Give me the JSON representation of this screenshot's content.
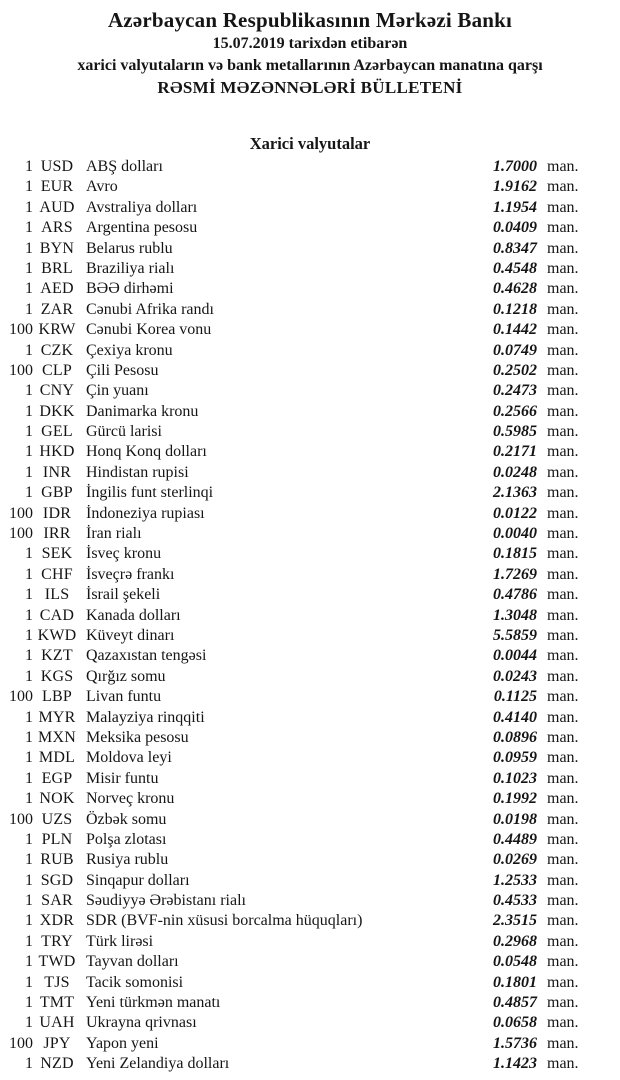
{
  "header": {
    "title": "Azərbaycan Respublikasının Mərkəzi Bankı",
    "date_line": "15.07.2019 tarixdən etibarən",
    "subtitle": "xarici valyutaların və bank metallarının Azərbaycan manatına qarşı",
    "bulletin_title": "RƏSMİ MƏZƏNNƏLƏRİ BÜLLETENİ"
  },
  "section": {
    "title": "Xarici valyutalar"
  },
  "table": {
    "unit_label": "man.",
    "rows": [
      {
        "qty": "1",
        "code": "USD",
        "name": "ABŞ dolları",
        "rate": "1.7000"
      },
      {
        "qty": "1",
        "code": "EUR",
        "name": "Avro",
        "rate": "1.9162"
      },
      {
        "qty": "1",
        "code": "AUD",
        "name": "Avstraliya dolları",
        "rate": "1.1954"
      },
      {
        "qty": "1",
        "code": "ARS",
        "name": "Argentina pesosu",
        "rate": "0.0409"
      },
      {
        "qty": "1",
        "code": "BYN",
        "name": "Belarus rublu",
        "rate": "0.8347"
      },
      {
        "qty": "1",
        "code": "BRL",
        "name": "Braziliya rialı",
        "rate": "0.4548"
      },
      {
        "qty": "1",
        "code": "AED",
        "name": "BƏƏ dirhəmi",
        "rate": "0.4628"
      },
      {
        "qty": "1",
        "code": "ZAR",
        "name": "Cənubi Afrika randı",
        "rate": "0.1218"
      },
      {
        "qty": "100",
        "code": "KRW",
        "name": "Cənubi Korea vonu",
        "rate": "0.1442"
      },
      {
        "qty": "1",
        "code": "CZK",
        "name": "Çexiya kronu",
        "rate": "0.0749"
      },
      {
        "qty": "100",
        "code": "CLP",
        "name": "Çili Pesosu",
        "rate": "0.2502"
      },
      {
        "qty": "1",
        "code": "CNY",
        "name": "Çin yuanı",
        "rate": "0.2473"
      },
      {
        "qty": "1",
        "code": "DKK",
        "name": "Danimarka kronu",
        "rate": "0.2566"
      },
      {
        "qty": "1",
        "code": "GEL",
        "name": "Gürcü larisi",
        "rate": "0.5985"
      },
      {
        "qty": "1",
        "code": "HKD",
        "name": "Honq Konq dolları",
        "rate": "0.2171"
      },
      {
        "qty": "1",
        "code": "INR",
        "name": "Hindistan rupisi",
        "rate": "0.0248"
      },
      {
        "qty": "1",
        "code": "GBP",
        "name": "İngilis funt sterlinqi",
        "rate": "2.1363"
      },
      {
        "qty": "100",
        "code": "IDR",
        "name": "İndoneziya rupiası",
        "rate": "0.0122"
      },
      {
        "qty": "100",
        "code": "IRR",
        "name": "İran rialı",
        "rate": "0.0040"
      },
      {
        "qty": "1",
        "code": "SEK",
        "name": "İsveç kronu",
        "rate": "0.1815"
      },
      {
        "qty": "1",
        "code": "CHF",
        "name": "İsveçrə frankı",
        "rate": "1.7269"
      },
      {
        "qty": "1",
        "code": "ILS",
        "name": "İsrail şekeli",
        "rate": "0.4786"
      },
      {
        "qty": "1",
        "code": "CAD",
        "name": "Kanada dolları",
        "rate": "1.3048"
      },
      {
        "qty": "1",
        "code": "KWD",
        "name": "Küveyt dinarı",
        "rate": "5.5859"
      },
      {
        "qty": "1",
        "code": "KZT",
        "name": "Qazaxıstan tengəsi",
        "rate": "0.0044"
      },
      {
        "qty": "1",
        "code": "KGS",
        "name": "Qırğız somu",
        "rate": "0.0243"
      },
      {
        "qty": "100",
        "code": "LBP",
        "name": "Livan funtu",
        "rate": "0.1125"
      },
      {
        "qty": "1",
        "code": "MYR",
        "name": "Malayziya rinqqiti",
        "rate": "0.4140"
      },
      {
        "qty": "1",
        "code": "MXN",
        "name": "Meksika pesosu",
        "rate": "0.0896"
      },
      {
        "qty": "1",
        "code": "MDL",
        "name": "Moldova leyi",
        "rate": "0.0959"
      },
      {
        "qty": "1",
        "code": "EGP",
        "name": "Misir funtu",
        "rate": "0.1023"
      },
      {
        "qty": "1",
        "code": "NOK",
        "name": "Norveç kronu",
        "rate": "0.1992"
      },
      {
        "qty": "100",
        "code": "UZS",
        "name": "Özbək somu",
        "rate": "0.0198"
      },
      {
        "qty": "1",
        "code": "PLN",
        "name": "Polşa zlotası",
        "rate": "0.4489"
      },
      {
        "qty": "1",
        "code": "RUB",
        "name": "Rusiya rublu",
        "rate": "0.0269"
      },
      {
        "qty": "1",
        "code": "SGD",
        "name": "Sinqapur dolları",
        "rate": "1.2533"
      },
      {
        "qty": "1",
        "code": "SAR",
        "name": "Səudiyyə Ərəbistanı rialı",
        "rate": "0.4533"
      },
      {
        "qty": "1",
        "code": "XDR",
        "name": "SDR (BVF-nin xüsusi borcalma hüquqları)",
        "rate": "2.3515"
      },
      {
        "qty": "1",
        "code": "TRY",
        "name": "Türk lirəsi",
        "rate": "0.2968"
      },
      {
        "qty": "1",
        "code": "TWD",
        "name": "Tayvan dolları",
        "rate": "0.0548"
      },
      {
        "qty": "1",
        "code": "TJS",
        "name": "Tacik somonisi",
        "rate": "0.1801"
      },
      {
        "qty": "1",
        "code": "TMT",
        "name": "Yeni türkmən manatı",
        "rate": "0.4857"
      },
      {
        "qty": "1",
        "code": "UAH",
        "name": "Ukrayna qrivnası",
        "rate": "0.0658"
      },
      {
        "qty": "100",
        "code": "JPY",
        "name": "Yapon yeni",
        "rate": "1.5736"
      },
      {
        "qty": "1",
        "code": "NZD",
        "name": "Yeni Zelandiya dolları",
        "rate": "1.1423"
      }
    ]
  }
}
